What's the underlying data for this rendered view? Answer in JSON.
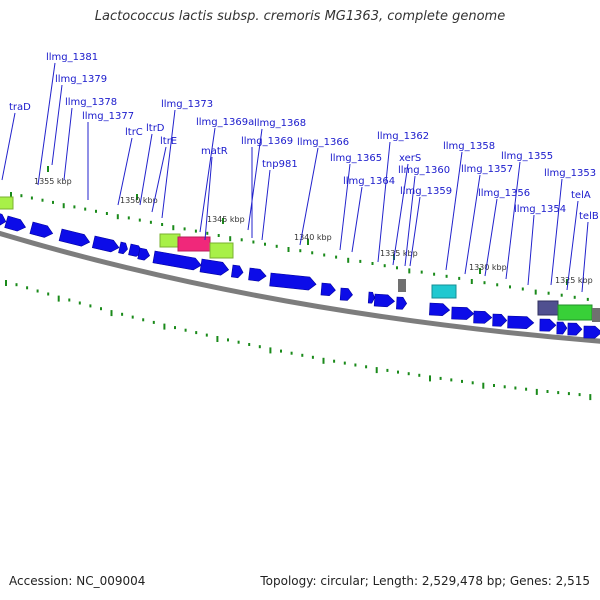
{
  "title": "Lactococcus lactis subsp. cremoris MG1363, complete genome",
  "footer": {
    "accession": "Accession: NC_009004",
    "topology": "Topology: circular; Length: 2,529,478 bp; Genes: 2,515"
  },
  "colors": {
    "gene": "#0c0ce8",
    "backbone": "#8a8a8a",
    "tick": "#1a8a1a",
    "label": "#1a1acc",
    "feature_lime": "#a8f048",
    "feature_pink": "#f0287a",
    "feature_cyan": "#20c8d0",
    "feature_purple": "#505090",
    "feature_green": "#38d038",
    "feature_grey": "#707070"
  },
  "kbp_ticks": [
    "1355 kbp",
    "1350 kbp",
    "1345 kbp",
    "1340 kbp",
    "1335 kbp",
    "1330 kbp",
    "1325 kbp"
  ],
  "gene_labels": [
    "llmg_1381",
    "llmg_1379",
    "llmg_1378",
    "llmg_1377",
    "traD",
    "ltrC",
    "ltrD",
    "ltrE",
    "llmg_1373",
    "llmg_1369a",
    "matR",
    "llmg_1368",
    "llmg_1369",
    "tnp981",
    "llmg_1366",
    "llmg_1365",
    "llmg_1364",
    "llmg_1362",
    "xerS",
    "llmg_1360",
    "llmg_1359",
    "llmg_1358",
    "llmg_1357",
    "llmg_1356",
    "llmg_1355",
    "llmg_1354",
    "llmg_1353",
    "telA",
    "telB"
  ]
}
